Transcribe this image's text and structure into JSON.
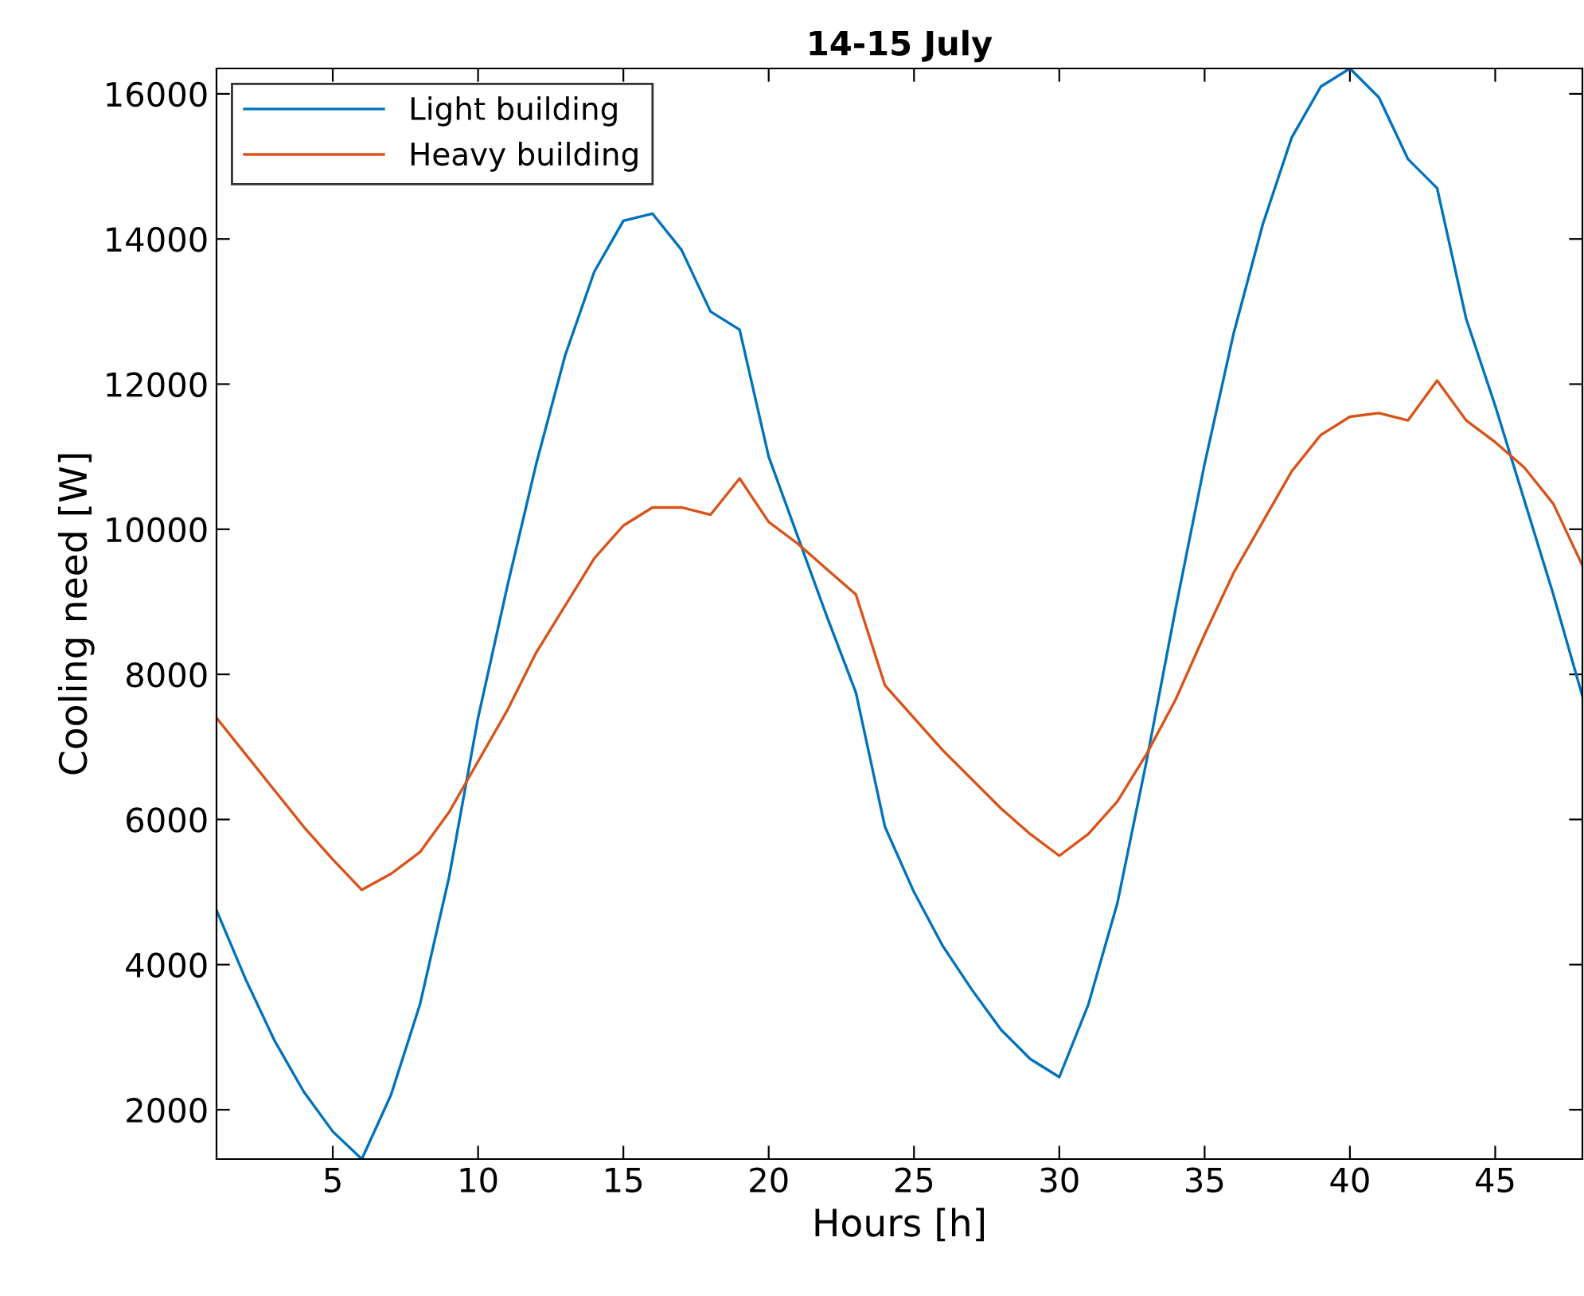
{
  "chart_data": {
    "type": "line",
    "title": "14-15 July",
    "xlabel": "Hours [h]",
    "ylabel": "Cooling need [W]",
    "x": [
      1,
      2,
      3,
      4,
      5,
      6,
      7,
      8,
      9,
      10,
      11,
      12,
      13,
      14,
      15,
      16,
      17,
      18,
      19,
      20,
      21,
      22,
      23,
      24,
      25,
      26,
      27,
      28,
      29,
      30,
      31,
      32,
      33,
      34,
      35,
      36,
      37,
      38,
      39,
      40,
      41,
      42,
      43,
      44,
      45,
      46,
      47,
      48
    ],
    "series": [
      {
        "name": "Light building",
        "color": "#0072bd",
        "values": [
          4750,
          3800,
          2950,
          2250,
          1700,
          1320,
          2200,
          3450,
          5200,
          7400,
          9200,
          10900,
          12400,
          13550,
          14250,
          14350,
          13850,
          13000,
          12750,
          11000,
          9900,
          8800,
          7750,
          5900,
          5000,
          4250,
          3650,
          3100,
          2700,
          2450,
          3450,
          4850,
          6800,
          8900,
          10900,
          12700,
          14200,
          15400,
          16100,
          16350,
          15950,
          15100,
          14700,
          12900,
          11700,
          10400,
          9100,
          7700
        ]
      },
      {
        "name": "Heavy building",
        "color": "#d95319",
        "values": [
          7400,
          6900,
          6400,
          5900,
          5450,
          5030,
          5250,
          5550,
          6100,
          6800,
          7500,
          8300,
          8950,
          9600,
          10050,
          10300,
          10300,
          10200,
          10700,
          10100,
          9800,
          9450,
          9100,
          7850,
          7400,
          6950,
          6550,
          6150,
          5800,
          5500,
          5800,
          6250,
          6900,
          7650,
          8550,
          9400,
          10100,
          10800,
          11300,
          11550,
          11600,
          11500,
          12050,
          11500,
          11200,
          10850,
          10350,
          9500
        ]
      }
    ],
    "xlim": [
      1,
      48
    ],
    "xticks": [
      5,
      10,
      15,
      20,
      25,
      30,
      35,
      40,
      45
    ],
    "ylim": [
      1320,
      16350
    ],
    "yticks": [
      2000,
      4000,
      6000,
      8000,
      10000,
      12000,
      14000,
      16000
    ],
    "grid": false,
    "legend": "top left",
    "line_style": "solid",
    "marker": "none"
  }
}
